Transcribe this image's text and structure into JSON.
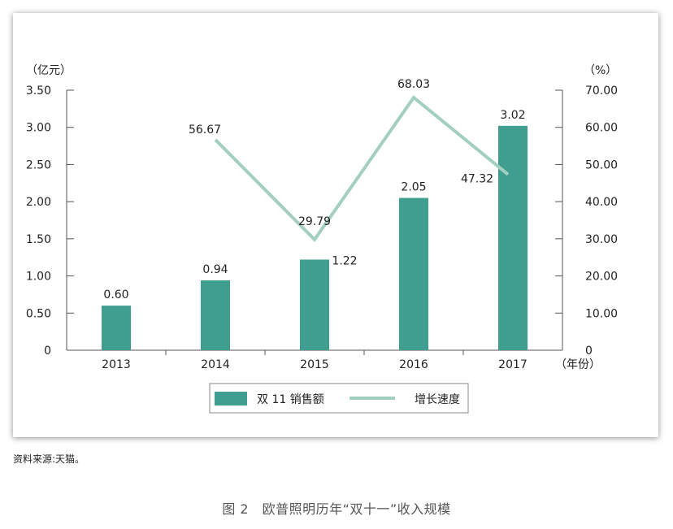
{
  "chart_data": {
    "type": "bar+line",
    "categories": [
      "2013",
      "2014",
      "2015",
      "2016",
      "2017"
    ],
    "series": [
      {
        "name": "双 11 销售额",
        "type": "bar",
        "axis": "left",
        "color": "#3f9e8f",
        "values": [
          0.6,
          0.94,
          1.22,
          2.05,
          3.02
        ],
        "labels": [
          "0.60",
          "0.94",
          "1.22",
          "2.05",
          "3.02"
        ]
      },
      {
        "name": "增长速度",
        "type": "line",
        "axis": "right",
        "color": "#a3cfc3",
        "values": [
          null,
          56.67,
          29.79,
          68.03,
          47.32
        ],
        "labels": [
          "",
          "56.67",
          "29.79",
          "68.03",
          "47.32"
        ]
      }
    ],
    "left_axis": {
      "unit": "（亿元）",
      "range": [
        0,
        3.5
      ],
      "ticks": [
        0,
        0.5,
        1.0,
        1.5,
        2.0,
        2.5,
        3.0,
        3.5
      ],
      "tick_labels": [
        "0",
        "0.50",
        "1.00",
        "1.50",
        "2.00",
        "2.50",
        "3.00",
        "3.50"
      ]
    },
    "right_axis": {
      "unit": "（%）",
      "range": [
        0,
        70
      ],
      "ticks": [
        0,
        10,
        20,
        30,
        40,
        50,
        60,
        70
      ],
      "tick_labels": [
        "0",
        "10.00",
        "20.00",
        "30.00",
        "40.00",
        "50.00",
        "60.00",
        "70.00"
      ]
    },
    "x_unit": "（年份）",
    "grid": false,
    "legend_position": "bottom-center"
  },
  "source_note": "资料来源:天猫。",
  "figure_caption": "图 2　欧普照明历年“双十一”收入规模"
}
